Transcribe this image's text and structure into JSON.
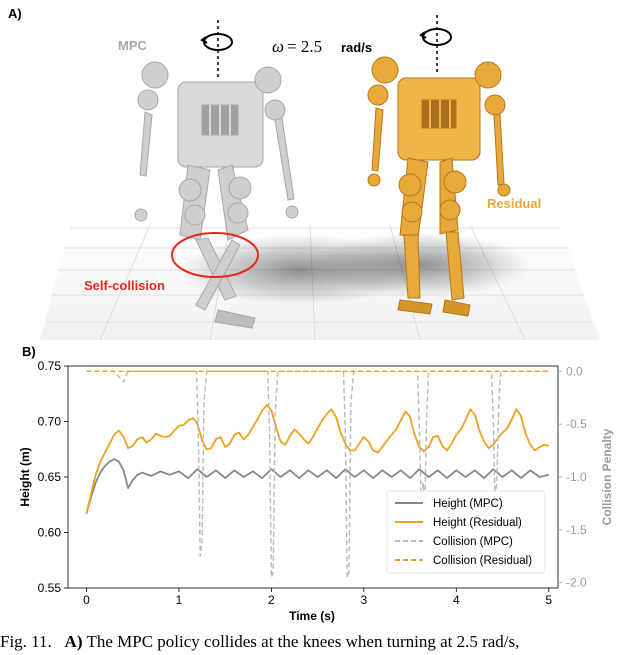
{
  "panel_a": {
    "label": "A)",
    "label_mpc": "MPC",
    "label_residual": "Residual",
    "label_selfcollision": "Self-collision",
    "omega_symbol": "ω",
    "omega_eq": "= 2.5",
    "omega_unit": "rad/s",
    "colors": {
      "mpc": "#c9c9c9",
      "residual": "#e8a93a",
      "self_collision": "#e8281c"
    }
  },
  "panel_b": {
    "label": "B)"
  },
  "chart_data": {
    "type": "line",
    "xlabel": "Time (s)",
    "ylabel": "Height (m)",
    "y2label": "Collision Penalty",
    "xlim": [
      -0.2,
      5.1
    ],
    "ylim": [
      0.55,
      0.75
    ],
    "y2lim": [
      -2.05,
      0.05
    ],
    "xticks": [
      "0",
      "1",
      "2",
      "3",
      "4",
      "5"
    ],
    "yticks": [
      "0.55",
      "0.60",
      "0.65",
      "0.70",
      "0.75"
    ],
    "y2ticks": [
      "0.0",
      "-0.5",
      "-1.0",
      "-1.5",
      "-2.0"
    ],
    "legend_position": "lower-right",
    "series": [
      {
        "name": "Height (MPC)",
        "axis": "left",
        "style": "solid",
        "color": "#888888",
        "x": [
          0,
          0.05,
          0.1,
          0.15,
          0.2,
          0.25,
          0.3,
          0.35,
          0.4,
          0.45,
          0.5,
          0.55,
          0.6,
          0.7,
          0.8,
          0.9,
          1.0,
          1.1,
          1.2,
          1.3,
          1.4,
          1.5,
          1.6,
          1.7,
          1.8,
          1.9,
          2.0,
          2.1,
          2.2,
          2.3,
          2.4,
          2.5,
          2.6,
          2.7,
          2.8,
          2.9,
          3.0,
          3.1,
          3.2,
          3.3,
          3.4,
          3.5,
          3.6,
          3.7,
          3.8,
          3.9,
          4.0,
          4.1,
          4.2,
          4.3,
          4.4,
          4.5,
          4.6,
          4.7,
          4.8,
          4.9,
          5.0
        ],
        "y": [
          0.617,
          0.632,
          0.645,
          0.654,
          0.66,
          0.664,
          0.666,
          0.664,
          0.656,
          0.64,
          0.647,
          0.652,
          0.654,
          0.651,
          0.655,
          0.652,
          0.655,
          0.649,
          0.657,
          0.65,
          0.656,
          0.649,
          0.656,
          0.65,
          0.655,
          0.649,
          0.657,
          0.65,
          0.656,
          0.649,
          0.656,
          0.65,
          0.656,
          0.649,
          0.657,
          0.65,
          0.656,
          0.649,
          0.656,
          0.65,
          0.656,
          0.649,
          0.657,
          0.65,
          0.656,
          0.649,
          0.656,
          0.65,
          0.656,
          0.649,
          0.657,
          0.65,
          0.656,
          0.649,
          0.656,
          0.65,
          0.652
        ]
      },
      {
        "name": "Height (Residual)",
        "axis": "left",
        "style": "solid",
        "color": "#f0a020",
        "x": [
          0,
          0.05,
          0.1,
          0.15,
          0.2,
          0.25,
          0.3,
          0.35,
          0.4,
          0.45,
          0.5,
          0.55,
          0.6,
          0.65,
          0.7,
          0.75,
          0.8,
          0.85,
          0.9,
          0.95,
          1.0,
          1.05,
          1.1,
          1.15,
          1.2,
          1.25,
          1.3,
          1.35,
          1.4,
          1.45,
          1.5,
          1.55,
          1.6,
          1.65,
          1.7,
          1.75,
          1.8,
          1.85,
          1.9,
          1.95,
          2.0,
          2.05,
          2.1,
          2.15,
          2.2,
          2.25,
          2.3,
          2.35,
          2.4,
          2.45,
          2.5,
          2.55,
          2.6,
          2.65,
          2.7,
          2.75,
          2.8,
          2.85,
          2.9,
          2.95,
          3.0,
          3.05,
          3.1,
          3.15,
          3.2,
          3.25,
          3.3,
          3.35,
          3.4,
          3.45,
          3.5,
          3.55,
          3.6,
          3.65,
          3.7,
          3.75,
          3.8,
          3.85,
          3.9,
          3.95,
          4.0,
          4.05,
          4.1,
          4.15,
          4.2,
          4.25,
          4.3,
          4.35,
          4.4,
          4.45,
          4.5,
          4.55,
          4.6,
          4.65,
          4.7,
          4.75,
          4.8,
          4.85,
          4.9,
          4.95,
          5.0
        ],
        "y": [
          0.617,
          0.635,
          0.652,
          0.664,
          0.672,
          0.68,
          0.688,
          0.692,
          0.686,
          0.676,
          0.678,
          0.684,
          0.686,
          0.681,
          0.684,
          0.689,
          0.687,
          0.686,
          0.687,
          0.692,
          0.696,
          0.697,
          0.701,
          0.703,
          0.698,
          0.683,
          0.675,
          0.676,
          0.684,
          0.686,
          0.677,
          0.68,
          0.688,
          0.69,
          0.684,
          0.688,
          0.695,
          0.702,
          0.71,
          0.715,
          0.71,
          0.695,
          0.682,
          0.679,
          0.687,
          0.693,
          0.689,
          0.684,
          0.68,
          0.686,
          0.694,
          0.701,
          0.707,
          0.711,
          0.704,
          0.69,
          0.68,
          0.674,
          0.674,
          0.68,
          0.686,
          0.682,
          0.674,
          0.672,
          0.677,
          0.683,
          0.688,
          0.693,
          0.701,
          0.709,
          0.704,
          0.688,
          0.677,
          0.673,
          0.677,
          0.686,
          0.687,
          0.678,
          0.674,
          0.68,
          0.688,
          0.693,
          0.701,
          0.711,
          0.706,
          0.692,
          0.682,
          0.676,
          0.679,
          0.685,
          0.69,
          0.694,
          0.702,
          0.711,
          0.705,
          0.689,
          0.679,
          0.674,
          0.677,
          0.679,
          0.678
        ]
      },
      {
        "name": "Collision (MPC)",
        "axis": "right",
        "style": "dashed",
        "color": "#b8b8b8",
        "x": [
          0,
          0.3,
          0.35,
          0.4,
          0.45,
          0.6,
          1.19,
          1.21,
          1.23,
          1.25,
          1.27,
          1.3,
          1.96,
          1.98,
          2.0,
          2.02,
          2.04,
          2.07,
          2.78,
          2.8,
          2.82,
          2.84,
          2.86,
          2.89,
          3.58,
          3.6,
          3.62,
          3.64,
          3.66,
          3.68,
          3.7,
          4.38,
          4.4,
          4.42,
          4.44,
          4.46,
          4.48,
          5.0
        ],
        "y": [
          0,
          0,
          -0.05,
          -0.1,
          0,
          0,
          0,
          -0.6,
          -1.75,
          -1.6,
          -0.3,
          0,
          0,
          -0.55,
          -1.95,
          -1.9,
          -0.4,
          0,
          0,
          -0.6,
          -1.95,
          -1.9,
          -0.3,
          0,
          0,
          -0.5,
          -1.25,
          -1.05,
          -1.25,
          -0.4,
          0,
          0,
          -0.45,
          -1.25,
          -1.0,
          -0.3,
          0,
          0
        ]
      },
      {
        "name": "Collision (Residual)",
        "axis": "right",
        "style": "dashed",
        "color": "#f0a020",
        "x": [
          0,
          5.0
        ],
        "y": [
          0,
          0
        ]
      }
    ]
  },
  "caption": {
    "prefix": "Fig. 11.",
    "bold": "A)",
    "text": "The MPC policy collides at the knees when turning at 2.5 rad/s,"
  }
}
